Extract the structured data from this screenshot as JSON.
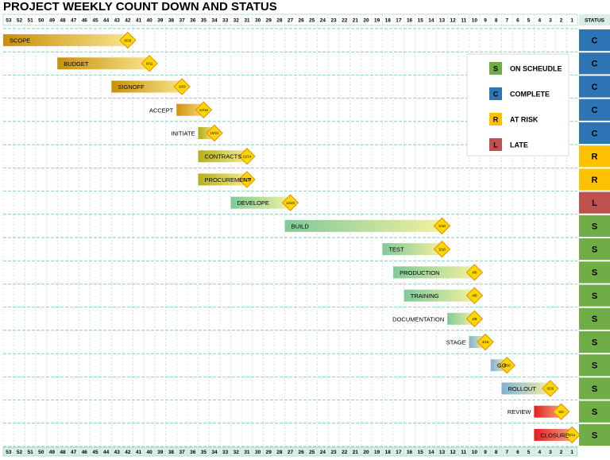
{
  "chart_data": {
    "type": "gantt",
    "title": "PROJECT WEEKLY COUNT DOWN AND STATUS",
    "status_header": "STATUS",
    "xlim": [
      53,
      1
    ],
    "xticks": [
      53,
      52,
      51,
      50,
      49,
      48,
      47,
      46,
      45,
      44,
      43,
      42,
      41,
      40,
      39,
      38,
      37,
      36,
      35,
      34,
      33,
      32,
      31,
      30,
      29,
      28,
      27,
      26,
      25,
      24,
      23,
      22,
      21,
      20,
      19,
      18,
      17,
      16,
      15,
      14,
      13,
      12,
      11,
      10,
      9,
      8,
      7,
      6,
      5,
      4,
      3,
      2,
      1
    ],
    "grid": true,
    "legend": [
      {
        "code": "S",
        "label": "ON SCHEUDLE",
        "color": "#70ad47"
      },
      {
        "code": "C",
        "label": "COMPLETE",
        "color": "#2e75b6"
      },
      {
        "code": "R",
        "label": "AT RISK",
        "color": "#ffc000"
      },
      {
        "code": "L",
        "label": "LATE",
        "color": "#c0504d"
      }
    ],
    "tasks": [
      {
        "name": "SCOPE",
        "start": 53,
        "end": 42,
        "date": "6/20",
        "status": "C",
        "label_side": "inside",
        "color": "#c8900a",
        "color2": "#f8e38c",
        "diamond": "#ffd700"
      },
      {
        "name": "BUDGET",
        "start": 48,
        "end": 40,
        "date": "8/11",
        "status": "C",
        "label_side": "inside",
        "color": "#c8900a",
        "color2": "#f8e38c",
        "diamond": "#ffd700"
      },
      {
        "name": "SIGNOFF",
        "start": 43,
        "end": 37,
        "date": "10/3",
        "status": "C",
        "label_side": "inside",
        "color": "#c8900a",
        "color2": "#f8e38c",
        "diamond": "#ffd700"
      },
      {
        "name": "ACCEPT",
        "start": 37,
        "end": 35,
        "date": "10/16",
        "status": "C",
        "label_side": "left",
        "color": "#d4900a",
        "color2": "#f5d77a",
        "diamond": "#ffd700"
      },
      {
        "name": "INITIATE",
        "start": 35,
        "end": 34,
        "date": "10/21",
        "status": "C",
        "label_side": "left",
        "color": "#b5a814",
        "color2": "#ece98a",
        "diamond": "#ffd700"
      },
      {
        "name": "CONTRACTS",
        "start": 35,
        "end": 31,
        "date": "11/14",
        "status": "R",
        "label_side": "inside",
        "color": "#b5b016",
        "color2": "#f0ec8c",
        "diamond": "#ffd700"
      },
      {
        "name": "PROCUREMENT",
        "start": 35,
        "end": 31,
        "date": "11/14",
        "status": "R",
        "label_side": "inside",
        "color": "#b5b016",
        "color2": "#f0ec8c",
        "diamond": "#ffd700"
      },
      {
        "name": "DEVELOPE",
        "start": 32,
        "end": 27,
        "date": "12/20",
        "status": "L",
        "label_side": "inside",
        "color": "#7fc99a",
        "color2": "#f1f0a0",
        "diamond": "#ffd700"
      },
      {
        "name": "BUILD",
        "start": 27,
        "end": 13,
        "date": "3/18",
        "status": "S",
        "label_side": "inside",
        "color": "#7fc99a",
        "color2": "#f1f0a0",
        "diamond": "#ffd700"
      },
      {
        "name": "TEST",
        "start": 18,
        "end": 13,
        "date": "3/18",
        "status": "S",
        "label_side": "inside",
        "color": "#7fc99a",
        "color2": "#f1f0a0",
        "diamond": "#ffd700"
      },
      {
        "name": "PRODUCTION",
        "start": 17,
        "end": 10,
        "date": "4/8",
        "status": "S",
        "label_side": "inside",
        "color": "#7fc99a",
        "color2": "#f1f0a0",
        "diamond": "#ffd700"
      },
      {
        "name": "TRAINING",
        "start": 16,
        "end": 10,
        "date": "4/8",
        "status": "S",
        "label_side": "inside",
        "color": "#7fc99a",
        "color2": "#f1f0a0",
        "diamond": "#ffd700"
      },
      {
        "name": "DOCUMENTATION",
        "start": 12,
        "end": 10,
        "date": "4/8",
        "status": "S",
        "label_side": "left",
        "color": "#7fc99a",
        "color2": "#f1f0a0",
        "diamond": "#ffd700"
      },
      {
        "name": "STAGE",
        "start": 10,
        "end": 9,
        "date": "4/16",
        "status": "S",
        "label_side": "left",
        "color": "#7fb2d8",
        "color2": "#f1f0a0",
        "diamond": "#ffd700"
      },
      {
        "name": "GO",
        "start": 8,
        "end": 7,
        "date": "4/30",
        "status": "S",
        "label_side": "inside",
        "color": "#7fb2d8",
        "color2": "#f1f0a0",
        "diamond": "#ffd700"
      },
      {
        "name": "ROLLOUT",
        "start": 7,
        "end": 3,
        "date": "5/26",
        "status": "S",
        "label_side": "inside",
        "color": "#7fb2d8",
        "color2": "#f1f0a0",
        "diamond": "#ffd700"
      },
      {
        "name": "REVIEW",
        "start": 4,
        "end": 2,
        "date": "6/2",
        "status": "S",
        "label_side": "left",
        "color": "#e02020",
        "color2": "#f5a07a",
        "diamond": "#ffd700"
      },
      {
        "name": "CLOSURE",
        "start": 4,
        "end": 1,
        "date": "6/11",
        "status": "S",
        "label_side": "inside",
        "color": "#e02020",
        "color2": "#f5a07a",
        "diamond": "#ffd700"
      }
    ]
  }
}
